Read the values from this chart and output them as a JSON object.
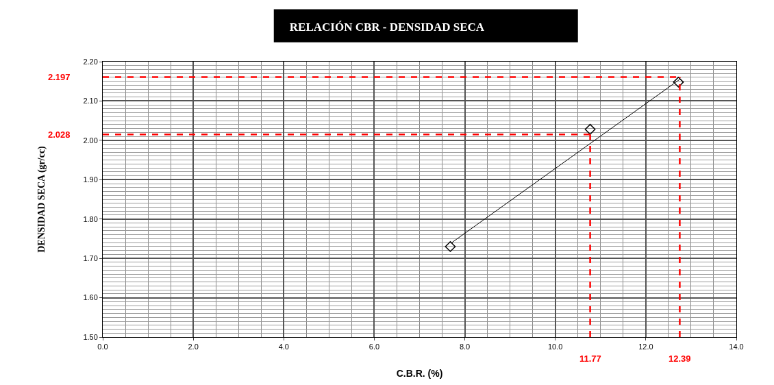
{
  "chart_data": {
    "type": "scatter",
    "title": "RELACIÓN CBR - DENSIDAD SECA",
    "xlabel": "C.B.R. (%)",
    "ylabel": "DENSIDAD SECA (gr/cc)",
    "x": [
      7.68,
      10.77,
      12.72
    ],
    "values": [
      1.73,
      2.028,
      2.148
    ],
    "color": "#000000",
    "marker": "diamond",
    "series": [
      {
        "type": "line",
        "x": [
          7.7,
          12.75
        ],
        "values": [
          1.739,
          2.155
        ],
        "color": "#000000",
        "marker": "none"
      }
    ],
    "xlim": [
      0,
      14
    ],
    "xticks": [
      {
        "value": 0,
        "label": "0.0"
      },
      {
        "value": 2,
        "label": "2.0"
      },
      {
        "value": 4,
        "label": "4.0"
      },
      {
        "value": 6,
        "label": "6.0"
      },
      {
        "value": 8,
        "label": "8.0"
      },
      {
        "value": 10,
        "label": "10.0"
      },
      {
        "value": 12,
        "label": "12.0"
      },
      {
        "value": 14,
        "label": "14.0"
      }
    ],
    "ylim": [
      1.5,
      2.2
    ],
    "yticks": [
      {
        "value": 1.5,
        "label": "1.50"
      },
      {
        "value": 1.6,
        "label": "1.60"
      },
      {
        "value": 1.7,
        "label": "1.70"
      },
      {
        "value": 1.8,
        "label": "1.80"
      },
      {
        "value": 1.9,
        "label": "1.90"
      },
      {
        "value": 2.0,
        "label": "2.00"
      },
      {
        "value": 2.1,
        "label": "2.10"
      },
      {
        "value": 2.2,
        "label": "2.20"
      }
    ],
    "ref_lines": [
      {
        "axis": "y",
        "value": 2.161,
        "color": "#ff0000",
        "line_style": "dashed"
      },
      {
        "axis": "y",
        "value": 2.015,
        "color": "#ff0000",
        "line_style": "dashed"
      },
      {
        "axis": "x",
        "value": 10.77,
        "color": "#ff0000",
        "line_style": "dashed"
      },
      {
        "axis": "x",
        "value": 12.75,
        "color": "#ff0000",
        "line_style": "dashed"
      }
    ],
    "annotations": [
      "2.197",
      "2.028",
      "11.77",
      "12.39"
    ],
    "grid": true
  }
}
